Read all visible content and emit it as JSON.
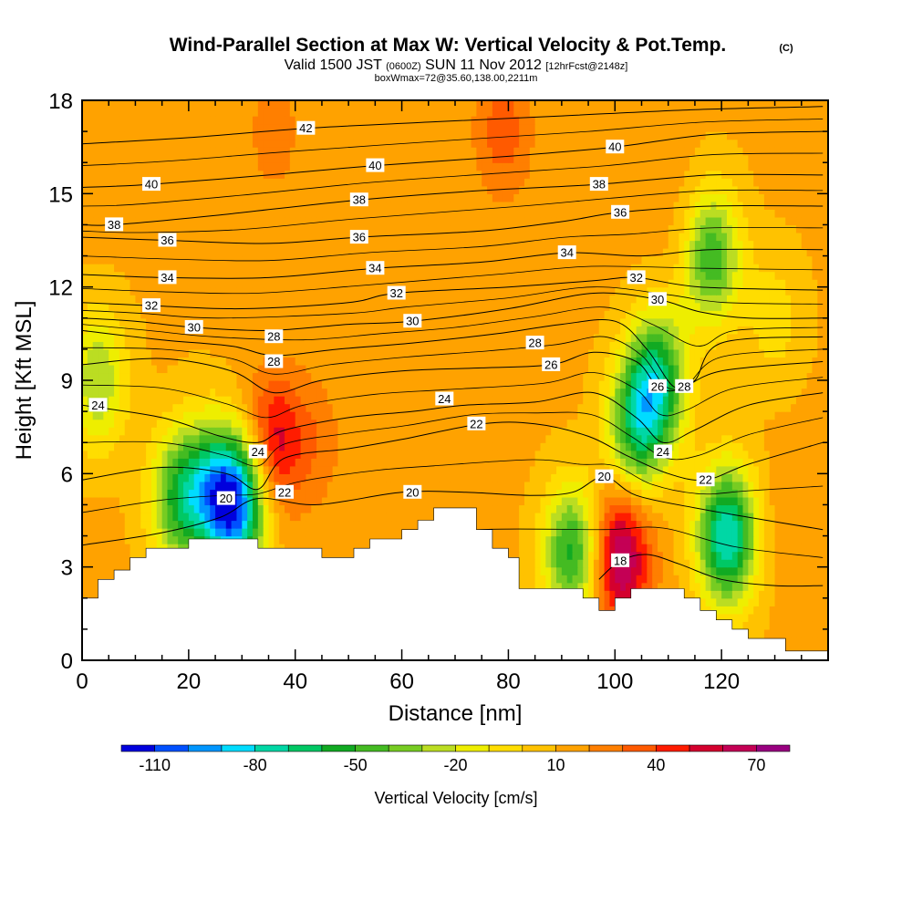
{
  "chart_data": {
    "type": "heatmap",
    "title": "Wind-Parallel Section at Max W: Vertical Velocity & Pot.Temp.",
    "copyright": "(C)",
    "subtitle_parts": [
      "Valid 1500 JST ",
      "(0600Z)",
      " SUN 11 Nov 2012 ",
      "[12hrFcst@2148z]"
    ],
    "subtitle2": "boxWmax=72@35.60,138.00,2211m",
    "xlabel": "Distance [nm]",
    "ylabel": "Height [Kft MSL]",
    "xlim": [
      0,
      140
    ],
    "ylim": [
      0,
      18
    ],
    "xticks": [
      0,
      20,
      40,
      60,
      80,
      100,
      120
    ],
    "yticks": [
      0,
      3,
      6,
      9,
      12,
      15,
      18
    ],
    "colorbar": {
      "label": "Vertical Velocity [cm/s]",
      "levels": [
        -120,
        -110,
        -100,
        -90,
        -80,
        -70,
        -60,
        -50,
        -40,
        -30,
        -20,
        -10,
        0,
        10,
        20,
        30,
        40,
        50,
        60,
        70,
        80
      ],
      "colors": [
        "#0000dd",
        "#0050ff",
        "#0096ff",
        "#00dcff",
        "#00d7a5",
        "#00c864",
        "#11aa22",
        "#44bb22",
        "#77cc22",
        "#bbdd22",
        "#eeee00",
        "#ffdd00",
        "#ffc200",
        "#ffa200",
        "#ff7f00",
        "#ff5a00",
        "#ff1c00",
        "#d4002e",
        "#c40055",
        "#990080"
      ],
      "tick_labels": [
        "-110",
        "-80",
        "-50",
        "-20",
        "10",
        "40",
        "70"
      ]
    },
    "terrain": [
      [
        0,
        2
      ],
      [
        3,
        2
      ],
      [
        3,
        2.6
      ],
      [
        6,
        2.6
      ],
      [
        6,
        2.9
      ],
      [
        9,
        2.9
      ],
      [
        9,
        3.3
      ],
      [
        12,
        3.3
      ],
      [
        12,
        3.6
      ],
      [
        20,
        3.6
      ],
      [
        20,
        3.9
      ],
      [
        33,
        3.9
      ],
      [
        33,
        3.6
      ],
      [
        45,
        3.6
      ],
      [
        45,
        3.3
      ],
      [
        51,
        3.3
      ],
      [
        51,
        3.6
      ],
      [
        54,
        3.6
      ],
      [
        54,
        3.9
      ],
      [
        60,
        3.9
      ],
      [
        60,
        4.2
      ],
      [
        63,
        4.2
      ],
      [
        63,
        4.5
      ],
      [
        66,
        4.5
      ],
      [
        66,
        4.9
      ],
      [
        74,
        4.9
      ],
      [
        74,
        4.2
      ],
      [
        77,
        4.2
      ],
      [
        77,
        3.6
      ],
      [
        80,
        3.6
      ],
      [
        80,
        3.3
      ],
      [
        82,
        3.3
      ],
      [
        82,
        2.3
      ],
      [
        94,
        2.3
      ],
      [
        94,
        2.0
      ],
      [
        97,
        2.0
      ],
      [
        97,
        1.6
      ],
      [
        100,
        1.6
      ],
      [
        100,
        2.0
      ],
      [
        103,
        2.0
      ],
      [
        103,
        2.3
      ],
      [
        113,
        2.3
      ],
      [
        113,
        2.0
      ],
      [
        116,
        2.0
      ],
      [
        116,
        1.6
      ],
      [
        119,
        1.6
      ],
      [
        119,
        1.3
      ],
      [
        122,
        1.3
      ],
      [
        122,
        1.0
      ],
      [
        125,
        1.0
      ],
      [
        125,
        0.7
      ],
      [
        132,
        0.7
      ],
      [
        132,
        0.3
      ],
      [
        139,
        0.3
      ]
    ],
    "wind_cells": [
      {
        "x": 108,
        "y": 9,
        "w": -60
      },
      {
        "x": 104,
        "y": 7.5,
        "w": -50
      },
      {
        "x": 118,
        "y": 13,
        "w": -50
      },
      {
        "x": 121,
        "y": 4,
        "w": -80
      },
      {
        "x": 29,
        "y": 5,
        "w": -95
      },
      {
        "x": 24,
        "y": 5.5,
        "w": -45
      },
      {
        "x": 18,
        "y": 5.2,
        "w": -45
      },
      {
        "x": 92,
        "y": 3.5,
        "w": -55
      },
      {
        "x": 3,
        "y": 9,
        "w": -30
      },
      {
        "x": 101,
        "y": 3.3,
        "w": 75
      },
      {
        "x": 36,
        "y": 7,
        "w": 55
      },
      {
        "x": 44,
        "y": 7,
        "w": 25
      },
      {
        "x": 79,
        "y": 17,
        "w": 35
      },
      {
        "x": 36,
        "y": 17,
        "w": 25
      },
      {
        "x": 113,
        "y": 14,
        "w": 20
      },
      {
        "x": 133,
        "y": 4.5,
        "w": 20
      },
      {
        "x": 65,
        "y": 12,
        "w": 15
      },
      {
        "x": 92,
        "y": 14,
        "w": 15
      },
      {
        "x": 20,
        "y": 12,
        "w": 10
      },
      {
        "x": 55,
        "y": 7,
        "w": 10
      },
      {
        "x": 130,
        "y": 11,
        "w": -5
      }
    ],
    "theta_contours": [
      {
        "level": "18",
        "points": [
          [
            97,
            2.6
          ],
          [
            101,
            3.2
          ],
          [
            106,
            3.4
          ],
          [
            112,
            3.1
          ],
          [
            120,
            2.6
          ],
          [
            130,
            2.4
          ],
          [
            139,
            2.4
          ]
        ]
      },
      {
        "level": "20",
        "points": [
          [
            0,
            3.7
          ],
          [
            15,
            4.1
          ],
          [
            26,
            4.6
          ],
          [
            33,
            5.2
          ],
          [
            44,
            5.0
          ],
          [
            60,
            5.4
          ],
          [
            72,
            5.4
          ],
          [
            84,
            5.3
          ],
          [
            92,
            5.4
          ],
          [
            98,
            5.9
          ],
          [
            104,
            5.3
          ],
          [
            115,
            4.9
          ],
          [
            125,
            4.6
          ],
          [
            139,
            4.2
          ]
        ]
      },
      {
        "level": "22",
        "points": [
          [
            0,
            5.8
          ],
          [
            15,
            6.2
          ],
          [
            27,
            6.0
          ],
          [
            33,
            5.5
          ],
          [
            38,
            6.5
          ],
          [
            50,
            6.8
          ],
          [
            60,
            7.1
          ],
          [
            75,
            7.6
          ],
          [
            85,
            7.6
          ],
          [
            95,
            7.2
          ],
          [
            102,
            6.6
          ],
          [
            110,
            6.0
          ],
          [
            117,
            5.8
          ],
          [
            125,
            6.3
          ],
          [
            139,
            7.0
          ]
        ]
      },
      {
        "level": "24",
        "points": [
          [
            0,
            8.2
          ],
          [
            15,
            7.8
          ],
          [
            26,
            7.2
          ],
          [
            33,
            7.0
          ],
          [
            38,
            7.4
          ],
          [
            50,
            7.8
          ],
          [
            62,
            8.0
          ],
          [
            72,
            8.2
          ],
          [
            85,
            8.3
          ],
          [
            96,
            8.6
          ],
          [
            104,
            7.8
          ],
          [
            109,
            7.0
          ],
          [
            115,
            7.4
          ],
          [
            125,
            8.2
          ],
          [
            139,
            8.6
          ]
        ]
      },
      {
        "level": "26",
        "points": [
          [
            0,
            9.5
          ],
          [
            15,
            9.7
          ],
          [
            28,
            9.3
          ],
          [
            36,
            8.6
          ],
          [
            45,
            9.0
          ],
          [
            60,
            9.3
          ],
          [
            75,
            9.4
          ],
          [
            88,
            9.5
          ],
          [
            96,
            9.9
          ],
          [
            104,
            9.6
          ],
          [
            108,
            8.8
          ],
          [
            112,
            8.7
          ],
          [
            120,
            9.3
          ],
          [
            139,
            9.6
          ]
        ]
      },
      {
        "level": "28",
        "points": [
          [
            0,
            10.6
          ],
          [
            15,
            10.3
          ],
          [
            28,
            10.1
          ],
          [
            36,
            9.8
          ],
          [
            48,
            10.0
          ],
          [
            62,
            10.2
          ],
          [
            78,
            10.5
          ],
          [
            90,
            10.8
          ],
          [
            100,
            10.9
          ],
          [
            106,
            10.0
          ],
          [
            111,
            8.8
          ],
          [
            115,
            9.0
          ],
          [
            120,
            10.2
          ],
          [
            139,
            10.4
          ]
        ]
      },
      {
        "level": "30",
        "points": [
          [
            0,
            11.0
          ],
          [
            10,
            10.9
          ],
          [
            21,
            10.7
          ],
          [
            35,
            10.6
          ],
          [
            50,
            10.8
          ],
          [
            62,
            10.9
          ],
          [
            80,
            11.3
          ],
          [
            96,
            11.8
          ],
          [
            108,
            11.6
          ],
          [
            116,
            11.2
          ],
          [
            125,
            11.0
          ],
          [
            139,
            11.0
          ]
        ]
      },
      {
        "level": "32",
        "points": [
          [
            0,
            11.5
          ],
          [
            13,
            11.4
          ],
          [
            30,
            11.3
          ],
          [
            50,
            11.5
          ],
          [
            59,
            11.8
          ],
          [
            80,
            12.0
          ],
          [
            96,
            12.2
          ],
          [
            104,
            12.3
          ],
          [
            116,
            12.0
          ],
          [
            139,
            11.9
          ]
        ]
      },
      {
        "level": "34",
        "points": [
          [
            0,
            12.4
          ],
          [
            16,
            12.3
          ],
          [
            35,
            12.3
          ],
          [
            55,
            12.6
          ],
          [
            75,
            12.8
          ],
          [
            91,
            13.1
          ],
          [
            105,
            13.0
          ],
          [
            118,
            13.2
          ],
          [
            139,
            13.2
          ]
        ]
      },
      {
        "level": "36",
        "points": [
          [
            0,
            13.6
          ],
          [
            16,
            13.5
          ],
          [
            35,
            13.4
          ],
          [
            52,
            13.6
          ],
          [
            75,
            13.8
          ],
          [
            90,
            14.1
          ],
          [
            101,
            14.4
          ],
          [
            118,
            14.6
          ],
          [
            139,
            14.6
          ]
        ]
      },
      {
        "level": "38",
        "points": [
          [
            0,
            14.0
          ],
          [
            6,
            14.0
          ],
          [
            25,
            14.3
          ],
          [
            52,
            14.8
          ],
          [
            75,
            15.1
          ],
          [
            97,
            15.3
          ],
          [
            118,
            15.6
          ],
          [
            139,
            15.6
          ]
        ]
      },
      {
        "level": "40",
        "points": [
          [
            0,
            15.2
          ],
          [
            13,
            15.3
          ],
          [
            35,
            15.6
          ],
          [
            55,
            15.9
          ],
          [
            80,
            16.2
          ],
          [
            100,
            16.5
          ],
          [
            118,
            16.9
          ],
          [
            139,
            17.0
          ]
        ]
      },
      {
        "level": "42",
        "points": [
          [
            0,
            16.6
          ],
          [
            20,
            16.8
          ],
          [
            42,
            17.1
          ],
          [
            65,
            17.3
          ],
          [
            90,
            17.5
          ],
          [
            115,
            17.7
          ],
          [
            139,
            17.8
          ]
        ]
      }
    ],
    "contour_labels": [
      {
        "text": "42",
        "x": 42,
        "y": 17.1
      },
      {
        "text": "40",
        "x": 13,
        "y": 15.3
      },
      {
        "text": "40",
        "x": 55,
        "y": 15.9
      },
      {
        "text": "40",
        "x": 100,
        "y": 16.5
      },
      {
        "text": "38",
        "x": 6,
        "y": 14.0
      },
      {
        "text": "38",
        "x": 52,
        "y": 14.8
      },
      {
        "text": "38",
        "x": 97,
        "y": 15.3
      },
      {
        "text": "36",
        "x": 16,
        "y": 13.5
      },
      {
        "text": "36",
        "x": 52,
        "y": 13.6
      },
      {
        "text": "36",
        "x": 101,
        "y": 14.4
      },
      {
        "text": "34",
        "x": 16,
        "y": 12.3
      },
      {
        "text": "34",
        "x": 55,
        "y": 12.6
      },
      {
        "text": "34",
        "x": 91,
        "y": 13.1
      },
      {
        "text": "32",
        "x": 13,
        "y": 11.4
      },
      {
        "text": "32",
        "x": 59,
        "y": 11.8
      },
      {
        "text": "32",
        "x": 104,
        "y": 12.3
      },
      {
        "text": "30",
        "x": 21,
        "y": 10.7
      },
      {
        "text": "30",
        "x": 62,
        "y": 10.9
      },
      {
        "text": "30",
        "x": 108,
        "y": 11.6
      },
      {
        "text": "28",
        "x": 36,
        "y": 10.4
      },
      {
        "text": "28",
        "x": 36,
        "y": 9.6
      },
      {
        "text": "28",
        "x": 85,
        "y": 10.2
      },
      {
        "text": "28",
        "x": 113,
        "y": 8.8
      },
      {
        "text": "26",
        "x": 88,
        "y": 9.5
      },
      {
        "text": "26",
        "x": 108,
        "y": 8.8
      },
      {
        "text": "24",
        "x": 3,
        "y": 8.2
      },
      {
        "text": "24",
        "x": 68,
        "y": 8.4
      },
      {
        "text": "24",
        "x": 33,
        "y": 6.7
      },
      {
        "text": "24",
        "x": 109,
        "y": 6.7
      },
      {
        "text": "22",
        "x": 74,
        "y": 7.6
      },
      {
        "text": "22",
        "x": 38,
        "y": 5.4
      },
      {
        "text": "22",
        "x": 117,
        "y": 5.8
      },
      {
        "text": "20",
        "x": 27,
        "y": 5.2
      },
      {
        "text": "20",
        "x": 62,
        "y": 5.4
      },
      {
        "text": "20",
        "x": 98,
        "y": 5.9
      },
      {
        "text": "18",
        "x": 101,
        "y": 3.2
      }
    ]
  }
}
